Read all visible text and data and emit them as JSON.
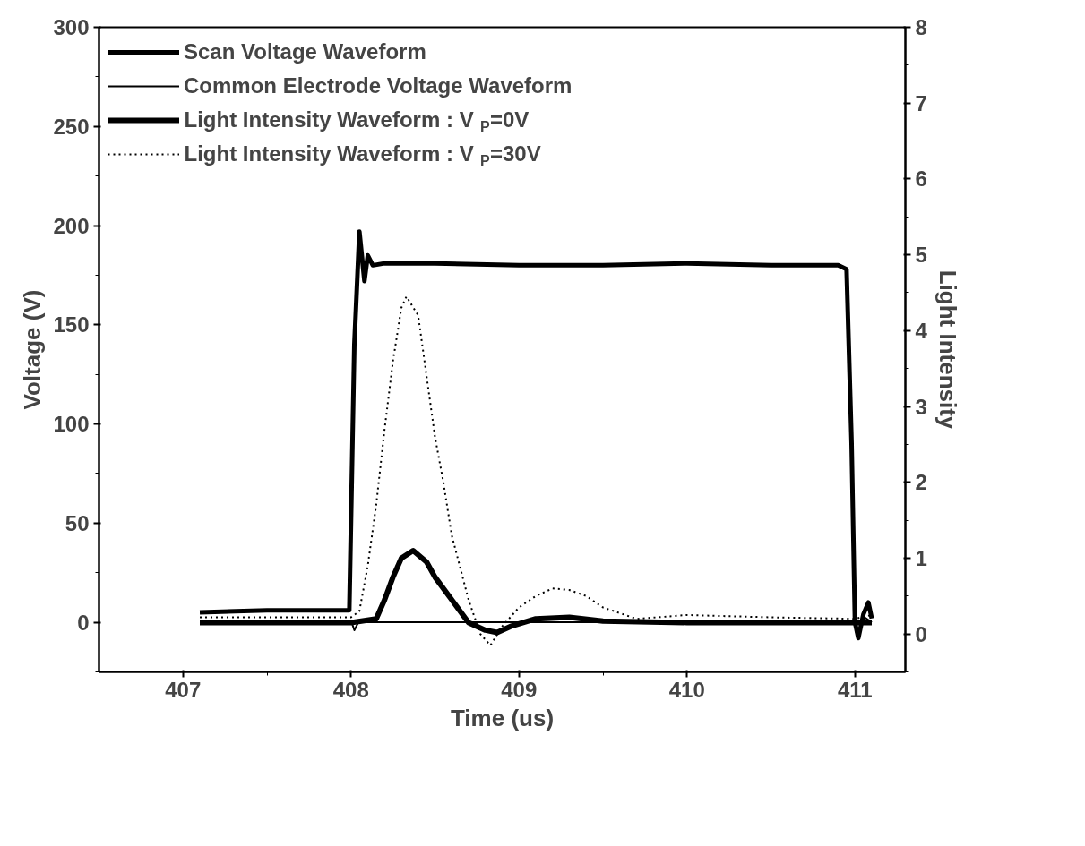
{
  "chart_data": {
    "type": "line",
    "xlabel": "Time (us)",
    "ylabel": "Voltage (V)",
    "y2label": "Light Intensity",
    "xlim": [
      406.5,
      411.3
    ],
    "xticks": [
      407,
      408,
      409,
      410,
      411
    ],
    "ylim": [
      -25,
      300
    ],
    "yticks": [
      0,
      50,
      100,
      150,
      200,
      250,
      300
    ],
    "y2lim": [
      -0.5,
      8
    ],
    "y2ticks": [
      0,
      1,
      2,
      3,
      4,
      5,
      6,
      7,
      8
    ],
    "grid": false,
    "legend": "top left",
    "marker": "none",
    "series": [
      {
        "name": "Scan Voltage Waveform",
        "color": "#000000",
        "line_style": "solid",
        "x": [
          407.1,
          407.5,
          407.99,
          408.02,
          408.05,
          408.08,
          408.1,
          408.13,
          408.2,
          408.5,
          409.0,
          409.5,
          410.0,
          410.5,
          410.9,
          410.95,
          410.98,
          411.0,
          411.02,
          411.05,
          411.08,
          411.1
        ],
        "values": [
          5,
          6,
          6,
          140,
          197,
          172,
          185,
          180,
          181,
          181,
          180,
          180,
          181,
          180,
          180,
          178,
          90,
          0,
          -8,
          4,
          10,
          2
        ]
      },
      {
        "name": "Common Electrode Voltage Waveform",
        "color": "#000000",
        "line_style": "solid",
        "x": [
          407.1,
          407.5,
          408.0,
          408.02,
          408.05,
          408.1,
          408.5,
          409.0,
          409.5,
          410.0,
          410.5,
          411.0,
          411.02,
          411.05,
          411.1
        ],
        "values": [
          1,
          1,
          1,
          -4,
          1,
          0,
          0,
          0,
          0,
          0,
          0,
          0,
          -5,
          3,
          0
        ]
      },
      {
        "name": "Light Intensity Waveform : V$_{P}$=0V",
        "color": "#000000",
        "line_style": "solid",
        "axis": "y2",
        "x": [
          407.1,
          407.5,
          408.0,
          408.15,
          408.2,
          408.25,
          408.3,
          408.37,
          408.45,
          408.5,
          408.6,
          408.7,
          408.8,
          408.87,
          408.95,
          409.1,
          409.3,
          409.5,
          410.0,
          410.5,
          411.0,
          411.1
        ],
        "values": [
          0.15,
          0.15,
          0.15,
          0.2,
          0.45,
          0.75,
          1.0,
          1.1,
          0.95,
          0.75,
          0.45,
          0.15,
          0.05,
          0.02,
          0.1,
          0.2,
          0.22,
          0.17,
          0.15,
          0.15,
          0.15,
          0.15
        ]
      },
      {
        "name": "Light Intensity Waveform : V$_{P}$=30V",
        "color": "#000000",
        "line_style": "dotted",
        "axis": "y2",
        "x": [
          407.1,
          407.5,
          408.0,
          408.05,
          408.1,
          408.15,
          408.2,
          408.25,
          408.3,
          408.33,
          408.4,
          408.45,
          408.5,
          408.55,
          408.6,
          408.7,
          408.77,
          408.83,
          408.9,
          409.0,
          409.1,
          409.2,
          409.3,
          409.4,
          409.5,
          409.7,
          410.0,
          410.5,
          411.0,
          411.1
        ],
        "values": [
          0.22,
          0.22,
          0.22,
          0.3,
          0.9,
          1.7,
          2.7,
          3.6,
          4.3,
          4.45,
          4.2,
          3.4,
          2.6,
          2.0,
          1.3,
          0.45,
          0.0,
          -0.15,
          0.1,
          0.35,
          0.5,
          0.6,
          0.58,
          0.5,
          0.35,
          0.2,
          0.25,
          0.22,
          0.2,
          0.25
        ]
      }
    ]
  }
}
